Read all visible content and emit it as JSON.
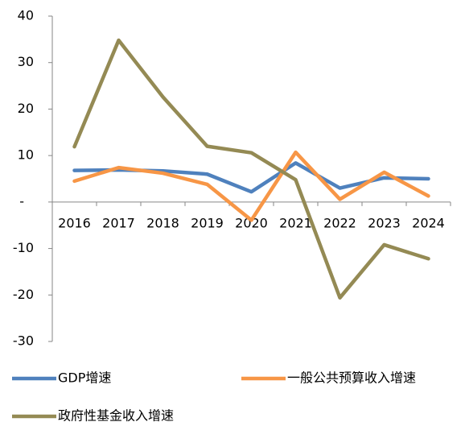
{
  "chart_data": {
    "type": "line",
    "categories": [
      "2016",
      "2017",
      "2018",
      "2019",
      "2020",
      "2021",
      "2022",
      "2023",
      "2024"
    ],
    "series": [
      {
        "name": "GDP增速",
        "color": "#4f81bd",
        "values": [
          6.8,
          6.9,
          6.7,
          6.0,
          2.2,
          8.4,
          3.0,
          5.2,
          5.0
        ]
      },
      {
        "name": "一般公共预算收入增速",
        "color": "#f79646",
        "values": [
          4.5,
          7.4,
          6.2,
          3.8,
          -3.9,
          10.7,
          0.6,
          6.4,
          1.3
        ]
      },
      {
        "name": "政府性基金收入增速",
        "color": "#948a54",
        "values": [
          11.9,
          34.8,
          22.6,
          12.0,
          10.6,
          4.8,
          -20.6,
          -9.2,
          -12.2
        ]
      }
    ],
    "ylim": [
      -30,
      40
    ],
    "yticks": [
      -30,
      -20,
      -10,
      {
        "value": 0,
        "label": "-"
      },
      10,
      20,
      30,
      40
    ],
    "grid": false,
    "legend": "bottom"
  }
}
